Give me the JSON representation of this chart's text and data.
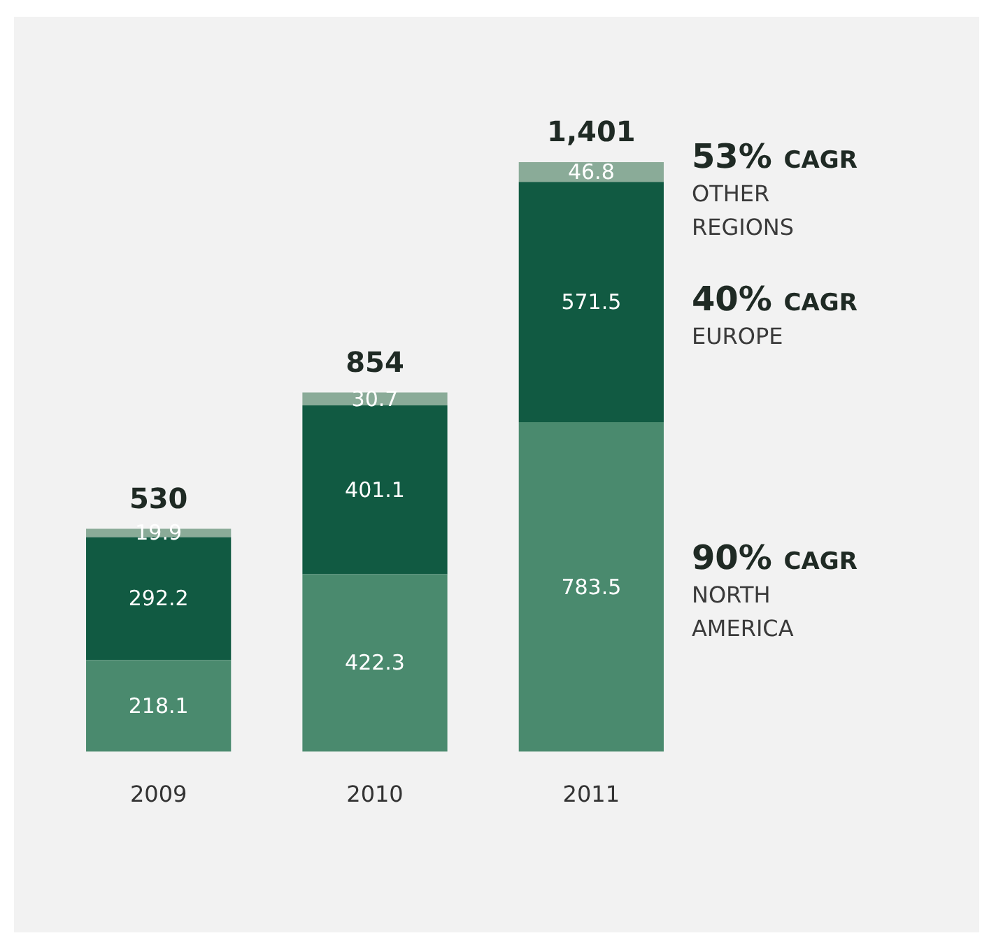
{
  "chart_data": {
    "type": "bar",
    "stacked": true,
    "categories": [
      "2009",
      "2010",
      "2011"
    ],
    "series": [
      {
        "name": "NORTH AMERICA",
        "color": "#4a8a6e",
        "values": [
          218.1,
          422.3,
          783.5
        ]
      },
      {
        "name": "EUROPE",
        "color": "#115a42",
        "values": [
          292.2,
          401.1,
          571.5
        ]
      },
      {
        "name": "OTHER REGIONS",
        "color": "#8aab98",
        "values": [
          19.9,
          30.7,
          46.8
        ]
      }
    ],
    "totals": [
      "530",
      "854",
      "1,401"
    ],
    "annotations": [
      "90% CAGR",
      "40% CAGR",
      "53% CAGR"
    ],
    "data_labels": true,
    "grid": false,
    "legend": false
  }
}
